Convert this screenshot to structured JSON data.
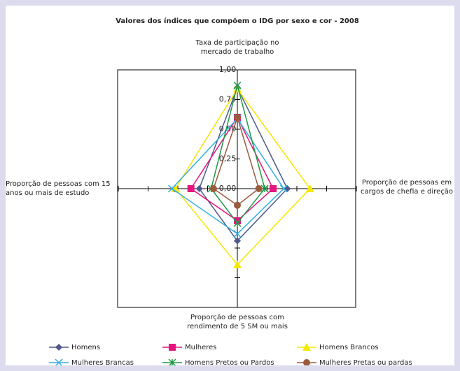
{
  "chart_data": {
    "type": "radar",
    "title": "Valores dos índices que compõem o IDG por sexo e cor - 2008",
    "categories": [
      "Taxa de participação no mercado de trabalho",
      "Proporção de pessoas em cargos de chefia e direção",
      "Proporção de pessoas com rendimento de 5 SM ou mais",
      "Proporção de pessoas com 15 anos ou mais de estudo"
    ],
    "ylim": [
      0,
      1
    ],
    "yticks": [
      {
        "value": 0,
        "label": "0,00"
      },
      {
        "value": 0.25,
        "label": "0,25"
      },
      {
        "value": 0.5,
        "label": "0,50"
      },
      {
        "value": 0.75,
        "label": "0,75"
      },
      {
        "value": 1,
        "label": "1,00"
      }
    ],
    "series": [
      {
        "name": "Homens",
        "color": "#4f5a8a",
        "marker": "diamond",
        "values": [
          0.85,
          0.42,
          0.44,
          0.32
        ]
      },
      {
        "name": "Mulheres",
        "color": "#e6147f",
        "marker": "square",
        "values": [
          0.6,
          0.3,
          0.27,
          0.39
        ]
      },
      {
        "name": "Homens Brancos",
        "color": "#f5e800",
        "marker": "triangle",
        "values": [
          0.84,
          0.61,
          0.64,
          0.52
        ]
      },
      {
        "name": "Mulheres Brancas",
        "color": "#33b0e0",
        "marker": "x",
        "values": [
          0.59,
          0.39,
          0.38,
          0.55
        ]
      },
      {
        "name": "Homens Pretos ou Pardos",
        "color": "#1e9a46",
        "marker": "star",
        "values": [
          0.87,
          0.23,
          0.29,
          0.22
        ]
      },
      {
        "name": "Mulheres Pretas ou pardas",
        "color": "#9a5a3c",
        "marker": "circle",
        "values": [
          0.6,
          0.18,
          0.14,
          0.2
        ]
      }
    ]
  }
}
